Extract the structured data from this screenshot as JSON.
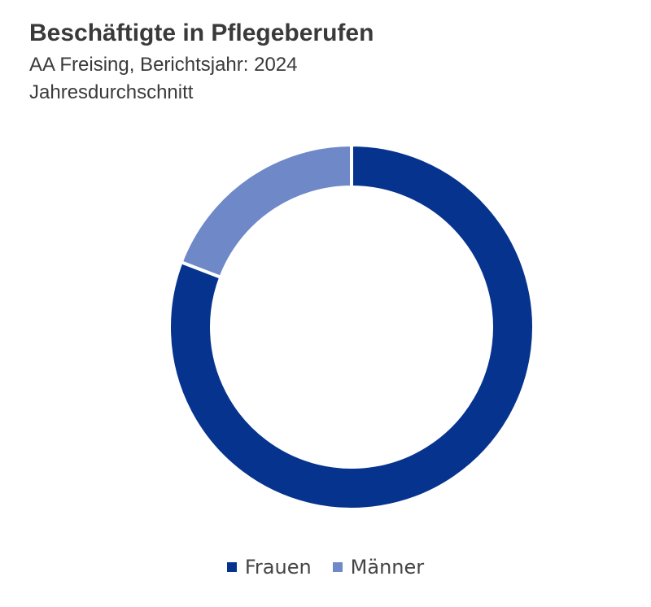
{
  "chart_data": {
    "type": "pie",
    "style": "donut",
    "title": "Beschäftigte in Pflegeberufen",
    "subtitle_lines": [
      "AA Freising, Berichtsjahr: 2024",
      "Jahresdurchschnitt"
    ],
    "categories": [
      "Frauen",
      "Männer"
    ],
    "values": [
      80.8,
      19.2
    ],
    "value_unit": "percent",
    "colors": [
      "#05338E",
      "#6E88C8"
    ],
    "legend_position": "bottom"
  }
}
